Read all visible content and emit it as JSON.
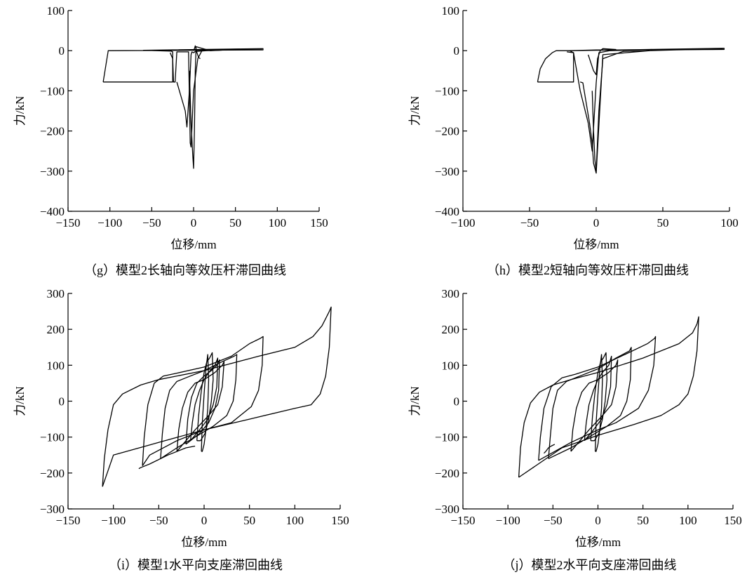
{
  "chart_data": [
    {
      "id": "g",
      "type": "line",
      "caption": "（g）模型2长轴向等效压杆滞回曲线",
      "xlabel": "位移/mm",
      "ylabel": "力/kN",
      "xlim": [
        -150,
        150
      ],
      "ylim": [
        -400,
        100
      ],
      "xticks": [
        -150,
        -100,
        -50,
        0,
        50,
        100,
        150
      ],
      "yticks": [
        -400,
        -300,
        -200,
        -100,
        0,
        100
      ],
      "grid": false,
      "series": [
        {
          "x": [
            -108,
            -102,
            83,
            83,
            -60,
            -27,
            -25,
            -25,
            -108,
            -108
          ],
          "y": [
            -78,
            0,
            2,
            5,
            1,
            -1,
            -3,
            -78,
            -78,
            -78
          ]
        },
        {
          "x": [
            -20,
            -10,
            -8,
            -5,
            -3,
            -2,
            0,
            2,
            15,
            40,
            82
          ],
          "y": [
            -78,
            -150,
            -190,
            -100,
            -10,
            -3,
            -5,
            -2,
            0,
            2,
            4
          ]
        },
        {
          "x": [
            -28,
            -25,
            -24,
            -22,
            -20,
            -6,
            -4,
            -3,
            0,
            5,
            10,
            30,
            55
          ],
          "y": [
            -5,
            -20,
            -78,
            -78,
            -3,
            -3,
            -230,
            -240,
            -100,
            -20,
            0,
            3,
            4
          ]
        },
        {
          "x": [
            -5,
            -3,
            -1,
            0,
            1,
            2,
            3,
            20,
            50
          ],
          "y": [
            -50,
            -180,
            -260,
            -293,
            -200,
            -50,
            10,
            0,
            3
          ]
        },
        {
          "x": [
            0,
            1,
            2,
            3,
            4,
            6,
            8
          ],
          "y": [
            0,
            5,
            12,
            3,
            -5,
            -17,
            -20
          ]
        }
      ]
    },
    {
      "id": "h",
      "type": "line",
      "caption": "（h）模型2短轴向等效压杆滞回曲线",
      "xlabel": "位移/mm",
      "ylabel": "力/kN",
      "xlim": [
        -100,
        100
      ],
      "ylim": [
        -400,
        100
      ],
      "xticks": [
        -100,
        -50,
        0,
        50,
        100
      ],
      "yticks": [
        -400,
        -300,
        -200,
        -100,
        0,
        100
      ],
      "grid": false,
      "series": [
        {
          "x": [
            -44,
            -42,
            -38,
            -33,
            -30,
            -20,
            0,
            96,
            96,
            -20,
            -17,
            -17,
            -44
          ],
          "y": [
            -78,
            -45,
            -20,
            -5,
            0,
            0,
            2,
            3,
            6,
            0,
            -5,
            -78,
            -78
          ]
        },
        {
          "x": [
            -12,
            -10,
            -5,
            -3,
            -2,
            0,
            5,
            40
          ],
          "y": [
            -78,
            -80,
            -180,
            -230,
            -280,
            -305,
            -10,
            0
          ]
        },
        {
          "x": [
            -3,
            -2,
            -1,
            0,
            2,
            5,
            20,
            60,
            95
          ],
          "y": [
            -100,
            -200,
            -270,
            -300,
            -150,
            -20,
            -2,
            2,
            4
          ]
        },
        {
          "x": [
            -22,
            -17,
            -12,
            -6,
            -3,
            0,
            2,
            10,
            42
          ],
          "y": [
            -3,
            -5,
            -100,
            -180,
            -250,
            -80,
            -5,
            0,
            3
          ]
        },
        {
          "x": [
            -6,
            -4,
            -2,
            0,
            1,
            3,
            5,
            15
          ],
          "y": [
            -10,
            -30,
            -50,
            -60,
            -20,
            0,
            5,
            3
          ]
        }
      ]
    },
    {
      "id": "i",
      "type": "line",
      "caption": "（i）模型1水平向支座滞回曲线",
      "xlabel": "位移/mm",
      "ylabel": "力/kN",
      "xlim": [
        -150,
        150
      ],
      "ylim": [
        -300,
        300
      ],
      "xticks": [
        -150,
        -100,
        -50,
        0,
        50,
        100,
        150
      ],
      "yticks": [
        -300,
        -200,
        -100,
        0,
        100,
        200,
        300
      ],
      "grid": false,
      "series": [
        {
          "x": [
            -112,
            -110,
            -106,
            -100,
            -90,
            -70,
            -50,
            0,
            60,
            100,
            120,
            130,
            135,
            138,
            140,
            138,
            134,
            128,
            118,
            100,
            50,
            0,
            -50,
            -100,
            -112
          ],
          "y": [
            -238,
            -160,
            -80,
            -10,
            20,
            45,
            60,
            85,
            125,
            150,
            180,
            210,
            235,
            250,
            262,
            150,
            70,
            20,
            -10,
            -20,
            -50,
            -80,
            -115,
            -150,
            -238
          ]
        },
        {
          "x": [
            -68,
            -66,
            -62,
            -55,
            -45,
            -30,
            0,
            30,
            50,
            62,
            65,
            64,
            60,
            52,
            30,
            0,
            -30,
            -60,
            -68
          ],
          "y": [
            -180,
            -100,
            -10,
            50,
            70,
            78,
            95,
            125,
            160,
            175,
            180,
            100,
            30,
            -15,
            -60,
            -80,
            -110,
            -150,
            -180
          ]
        },
        {
          "x": [
            -48,
            -46,
            -43,
            -38,
            -30,
            -20,
            0,
            20,
            33,
            36,
            35,
            32,
            25,
            10,
            -10,
            -30,
            -48
          ],
          "y": [
            -160,
            -90,
            -20,
            30,
            55,
            65,
            85,
            110,
            125,
            130,
            60,
            0,
            -40,
            -70,
            -100,
            -130,
            -160
          ]
        },
        {
          "x": [
            -30,
            -28,
            -24,
            -18,
            -10,
            0,
            12,
            20,
            22,
            20,
            15,
            5,
            -10,
            -30
          ],
          "y": [
            -140,
            -80,
            -20,
            25,
            50,
            60,
            80,
            100,
            110,
            40,
            -10,
            -40,
            -80,
            -140
          ]
        },
        {
          "x": [
            -15,
            -13,
            -10,
            -5,
            0,
            5,
            12,
            15,
            14,
            10,
            4,
            -5,
            -15
          ],
          "y": [
            -110,
            -60,
            -10,
            30,
            60,
            80,
            100,
            120,
            40,
            -10,
            -50,
            -80,
            -110
          ]
        },
        {
          "x": [
            -8,
            -6,
            -3,
            0,
            3,
            6,
            9,
            10,
            8,
            5,
            1,
            -4,
            -8
          ],
          "y": [
            -110,
            -40,
            30,
            80,
            110,
            120,
            135,
            60,
            0,
            -50,
            -90,
            -110,
            -110
          ]
        },
        {
          "x": [
            -3,
            -2,
            0,
            2,
            4,
            5,
            4,
            2,
            0,
            -2,
            -3
          ],
          "y": [
            -140,
            -60,
            20,
            90,
            130,
            60,
            -20,
            -80,
            -120,
            -140,
            -140
          ]
        },
        {
          "x": [
            -20,
            -18,
            -14,
            -8,
            0,
            8,
            14,
            17,
            16,
            12,
            5,
            -5,
            -20
          ],
          "y": [
            -120,
            -50,
            10,
            50,
            70,
            85,
            100,
            115,
            30,
            -20,
            -60,
            -90,
            -120
          ]
        },
        {
          "x": [
            -72,
            -70,
            -60,
            -40,
            -20,
            -10
          ],
          "y": [
            -188,
            -185,
            -175,
            -150,
            -130,
            -125
          ]
        }
      ]
    },
    {
      "id": "j",
      "type": "line",
      "caption": "（j）模型2水平向支座滞回曲线",
      "xlabel": "位移/mm",
      "ylabel": "力/kN",
      "xlim": [
        -150,
        150
      ],
      "ylim": [
        -300,
        300
      ],
      "xticks": [
        -150,
        -100,
        -50,
        0,
        50,
        100,
        150
      ],
      "yticks": [
        -300,
        -200,
        -100,
        0,
        100,
        200,
        300
      ],
      "grid": false,
      "series": [
        {
          "x": [
            -88,
            -86,
            -82,
            -75,
            -65,
            -50,
            -30,
            0,
            50,
            90,
            105,
            110,
            112,
            110,
            106,
            100,
            90,
            70,
            40,
            0,
            -40,
            -88
          ],
          "y": [
            -212,
            -130,
            -60,
            -5,
            25,
            45,
            60,
            80,
            120,
            160,
            190,
            215,
            235,
            140,
            70,
            20,
            -10,
            -40,
            -65,
            -95,
            -130,
            -212
          ]
        },
        {
          "x": [
            -66,
            -64,
            -60,
            -52,
            -40,
            -25,
            0,
            30,
            55,
            63,
            64,
            62,
            56,
            45,
            20,
            0,
            -30,
            -66
          ],
          "y": [
            -165,
            -100,
            -20,
            40,
            65,
            75,
            95,
            130,
            160,
            175,
            180,
            100,
            30,
            -20,
            -60,
            -80,
            -115,
            -165
          ]
        },
        {
          "x": [
            -55,
            -53,
            -50,
            -45,
            -35,
            -20,
            0,
            20,
            35,
            37,
            36,
            32,
            25,
            10,
            -10,
            -30,
            -55
          ],
          "y": [
            -160,
            -100,
            -20,
            30,
            55,
            70,
            90,
            120,
            140,
            150,
            60,
            0,
            -40,
            -70,
            -100,
            -130,
            -160
          ]
        },
        {
          "x": [
            -30,
            -28,
            -24,
            -18,
            -10,
            0,
            12,
            20,
            22,
            20,
            15,
            5,
            -10,
            -30
          ],
          "y": [
            -140,
            -80,
            -20,
            25,
            50,
            60,
            80,
            100,
            115,
            40,
            -10,
            -40,
            -80,
            -140
          ]
        },
        {
          "x": [
            -15,
            -13,
            -10,
            -5,
            0,
            5,
            12,
            15,
            14,
            10,
            4,
            -5,
            -15
          ],
          "y": [
            -110,
            -60,
            -10,
            30,
            60,
            80,
            100,
            125,
            40,
            -10,
            -50,
            -80,
            -110
          ]
        },
        {
          "x": [
            -8,
            -6,
            -3,
            0,
            3,
            6,
            9,
            10,
            8,
            5,
            1,
            -4,
            -8
          ],
          "y": [
            -110,
            -40,
            30,
            80,
            110,
            120,
            135,
            60,
            0,
            -50,
            -90,
            -110,
            -110
          ]
        },
        {
          "x": [
            -3,
            -2,
            0,
            2,
            4,
            5,
            4,
            2,
            0,
            -2,
            -3
          ],
          "y": [
            -140,
            -60,
            20,
            90,
            130,
            60,
            -20,
            -80,
            -120,
            -140,
            -140
          ]
        },
        {
          "x": [
            -60,
            -58,
            -55,
            -52,
            -48
          ],
          "y": [
            -145,
            -140,
            -130,
            -125,
            -120
          ]
        }
      ]
    }
  ]
}
